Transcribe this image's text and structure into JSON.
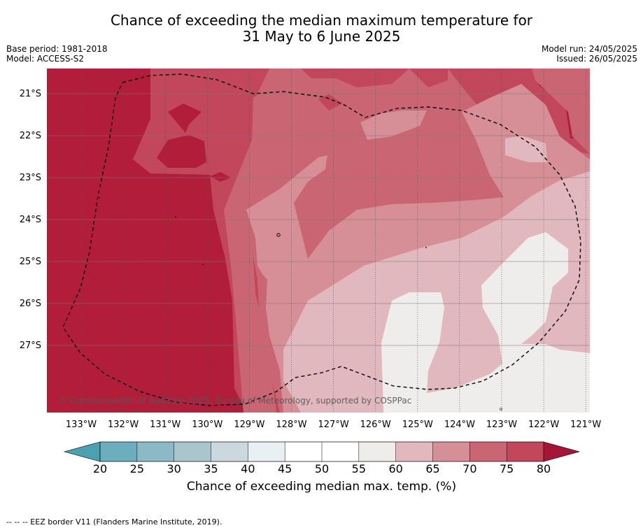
{
  "title": {
    "line1": "Chance of exceeding the median maximum temperature for",
    "line2": "31 May to 6 June 2025"
  },
  "meta": {
    "base_period": "Base period: 1981-2018",
    "model": "Model: ACCESS-S2",
    "model_run": "Model run: 24/05/2025",
    "issued": "Issued: 26/05/2025"
  },
  "map": {
    "lat_labels": [
      "21°S",
      "22°S",
      "23°S",
      "24°S",
      "25°S",
      "26°S",
      "27°S"
    ],
    "lon_labels": [
      "133°W",
      "132°W",
      "131°W",
      "130°W",
      "129°W",
      "128°W",
      "127°W",
      "126°W",
      "125°W",
      "124°W",
      "123°W",
      "122°W",
      "121°W"
    ],
    "copyright": "© Commonwealth of Australia 2025, Bureau of Meteorology, supported by COSPPac",
    "colors": {
      "c80plus": "#b21e3a",
      "c75": "#c2475a",
      "c70": "#ca6673",
      "c65": "#d68f96",
      "c60": "#e1b8bd",
      "c55": "#efedec"
    }
  },
  "colorbar": {
    "ticks": [
      "20",
      "25",
      "30",
      "35",
      "40",
      "45",
      "50",
      "55",
      "60",
      "65",
      "70",
      "75",
      "80"
    ],
    "colors": [
      "#6caebe",
      "#8bbac6",
      "#a9c6cd",
      "#cbd8de",
      "#e9f0f3",
      "#ffffff",
      "#ffffff",
      "#efedec",
      "#e1b8bd",
      "#d68f96",
      "#ca6673",
      "#c2475a"
    ],
    "under_color": "#4aa1b1",
    "over_color": "#a81438",
    "label": "Chance of exceeding median max. temp. (%)"
  },
  "footer": "-- -- -- EEZ border V11 (Flanders Marine Institute, 2019)."
}
